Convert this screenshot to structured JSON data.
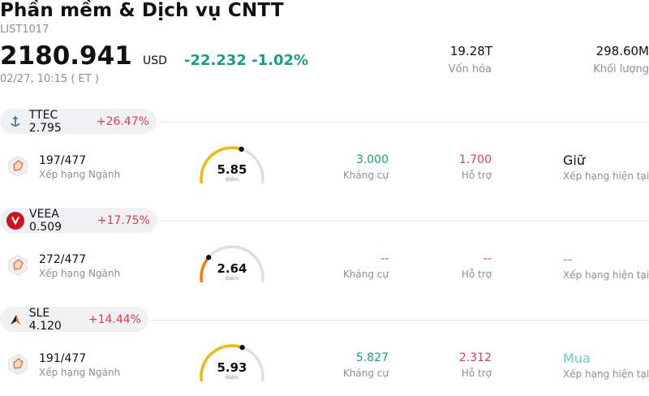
{
  "header": {
    "title": "Phần mềm & Dịch vụ CNTT",
    "code": "LIST1017",
    "price": "2180.941",
    "currency": "USD",
    "change": "-22.232 -1.02%",
    "time": "02/27, 10:15  ( ET )",
    "market_cap_value": "19.28T",
    "market_cap_label": "Vốn hóa",
    "volume_value": "298.60M",
    "volume_label": "Khối lượng"
  },
  "stocks": [
    {
      "symbol_price": "TTEC 2.795",
      "change": "+26.47%",
      "logo_icon": "ttec-anchor-icon",
      "rank": "197/477",
      "rank_label": "Xếp hạng Ngành",
      "score": "5.85",
      "score_fraction": 0.585,
      "score_color": "#f5b70a",
      "score_label": "Điểm",
      "resistance": "3.000",
      "resistance_label": "Kháng cự",
      "support": "1.700",
      "support_label": "Hỗ trợ",
      "rating": "Giữ",
      "rating_label": "Xếp hạng hiện tại"
    },
    {
      "symbol_price": "VEEA 0.509",
      "change": "+17.75%",
      "logo_icon": "veea-v-icon",
      "rank": "272/477",
      "rank_label": "Xếp hạng Ngành",
      "score": "2.64",
      "score_fraction": 0.264,
      "score_color": "#f07b16",
      "score_label": "Điểm",
      "resistance": "--",
      "resistance_label": "Kháng cự",
      "support": "--",
      "support_label": "Hỗ trợ",
      "rating": "--",
      "rating_label": "Xếp hạng hiện tại"
    },
    {
      "symbol_price": "SLE 4.120",
      "change": "+14.44%",
      "logo_icon": "sle-arrow-icon",
      "rank": "191/477",
      "rank_label": "Xếp hạng Ngành",
      "score": "5.93",
      "score_fraction": 0.593,
      "score_color": "#f5b70a",
      "score_label": "Điểm",
      "resistance": "5.827",
      "resistance_label": "Kháng cự",
      "support": "2.312",
      "support_label": "Hỗ trợ",
      "rating": "Mua",
      "rating_label": "Xếp hạng hiện tại"
    }
  ],
  "colors": {
    "up": "#12a08b",
    "down": "#e23c4b",
    "rating_buy": "#5fcfc0"
  }
}
